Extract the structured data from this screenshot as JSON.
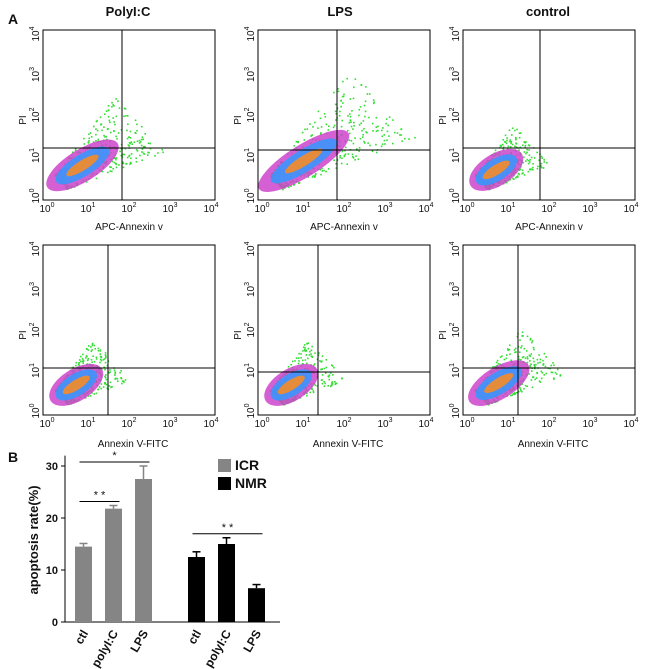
{
  "panel_labels": [
    "A",
    "B"
  ],
  "flow": {
    "columns": [
      "PolyI:C",
      "LPS",
      "control"
    ],
    "y_label": "PI",
    "x_labels": [
      "APC-Annexin v",
      "Annexin V-FITC"
    ],
    "tick_base": "10",
    "tick_exponents": [
      "0",
      "1",
      "2",
      "3",
      "4"
    ]
  },
  "chart_data": {
    "type": "bar",
    "ylabel": "apoptosis rate(%)",
    "categories": [
      "ctl",
      "polyI:C",
      "LPS"
    ],
    "series": [
      {
        "name": "ICR",
        "color": "#858585",
        "values": [
          14.5,
          21.8,
          27.5
        ],
        "errors": [
          0.6,
          0.6,
          2.5
        ]
      },
      {
        "name": "NMR",
        "color": "#000000",
        "values": [
          12.5,
          15,
          6.5
        ],
        "errors": [
          1,
          1.2,
          0.7
        ]
      }
    ],
    "ylim": [
      0,
      32
    ],
    "yticks": [
      0,
      10,
      20,
      30
    ],
    "annotations": [
      {
        "label": "*",
        "series": "ICR",
        "between": [
          "ctl",
          "LPS"
        ]
      },
      {
        "label": "* *",
        "series": "ICR",
        "between": [
          "ctl",
          "polyI:C"
        ]
      },
      {
        "label": "* *",
        "series": "NMR",
        "between": [
          "ctl",
          "LPS"
        ]
      }
    ]
  }
}
